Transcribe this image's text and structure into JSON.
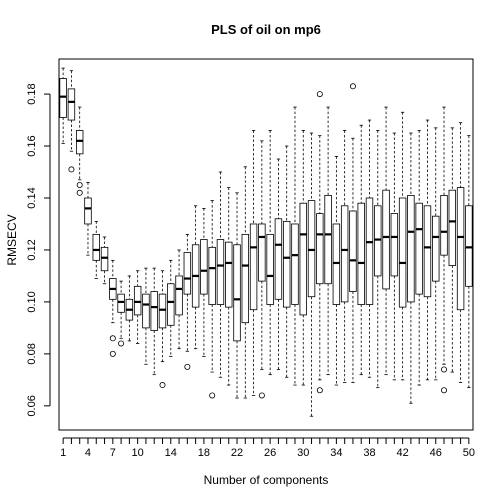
{
  "chart_data": {
    "type": "boxplot",
    "title": "PLS of oil on mp6",
    "xlabel": "Number of components",
    "ylabel": "RMSECV",
    "ylim": [
      0.05,
      0.195
    ],
    "y_ticks": [
      0.06,
      0.08,
      0.1,
      0.12,
      0.14,
      0.16,
      0.18
    ],
    "y_tick_labels": [
      "0.06",
      "0.08",
      "0.10",
      "0.12",
      "0.14",
      "0.16",
      "0.18"
    ],
    "x_tick_labels": [
      "1",
      "4",
      "7",
      "10",
      "14",
      "18",
      "22",
      "26",
      "30",
      "34",
      "38",
      "42",
      "46",
      "50"
    ],
    "x_tick_positions": [
      1,
      4,
      7,
      10,
      14,
      18,
      22,
      26,
      30,
      34,
      38,
      42,
      46,
      50
    ],
    "grid": false,
    "legend": "none",
    "boxes": [
      {
        "x": 1,
        "min": 0.161,
        "q1": 0.171,
        "median": 0.179,
        "q3": 0.186,
        "max": 0.19,
        "outliers": []
      },
      {
        "x": 2,
        "min": 0.158,
        "q1": 0.17,
        "median": 0.177,
        "q3": 0.182,
        "max": 0.189,
        "outliers": [
          0.151
        ]
      },
      {
        "x": 3,
        "min": 0.147,
        "q1": 0.157,
        "median": 0.162,
        "q3": 0.166,
        "max": 0.175,
        "outliers": [
          0.145,
          0.142
        ]
      },
      {
        "x": 4,
        "min": 0.118,
        "q1": 0.13,
        "median": 0.136,
        "q3": 0.14,
        "max": 0.146,
        "outliers": []
      },
      {
        "x": 5,
        "min": 0.109,
        "q1": 0.116,
        "median": 0.12,
        "q3": 0.126,
        "max": 0.131,
        "outliers": []
      },
      {
        "x": 6,
        "min": 0.107,
        "q1": 0.112,
        "median": 0.117,
        "q3": 0.121,
        "max": 0.125,
        "outliers": []
      },
      {
        "x": 7,
        "min": 0.092,
        "q1": 0.101,
        "median": 0.105,
        "q3": 0.109,
        "max": 0.116,
        "outliers": [
          0.086,
          0.08
        ]
      },
      {
        "x": 8,
        "min": 0.086,
        "q1": 0.096,
        "median": 0.1,
        "q3": 0.103,
        "max": 0.108,
        "outliers": [
          0.084
        ]
      },
      {
        "x": 9,
        "min": 0.085,
        "q1": 0.093,
        "median": 0.097,
        "q3": 0.101,
        "max": 0.11,
        "outliers": []
      },
      {
        "x": 10,
        "min": 0.084,
        "q1": 0.095,
        "median": 0.1,
        "q3": 0.106,
        "max": 0.112,
        "outliers": []
      },
      {
        "x": 11,
        "min": 0.076,
        "q1": 0.09,
        "median": 0.099,
        "q3": 0.103,
        "max": 0.113,
        "outliers": []
      },
      {
        "x": 12,
        "min": 0.072,
        "q1": 0.089,
        "median": 0.098,
        "q3": 0.104,
        "max": 0.113,
        "outliers": []
      },
      {
        "x": 13,
        "min": 0.077,
        "q1": 0.09,
        "median": 0.097,
        "q3": 0.103,
        "max": 0.112,
        "outliers": [
          0.068
        ]
      },
      {
        "x": 14,
        "min": 0.079,
        "q1": 0.091,
        "median": 0.1,
        "q3": 0.107,
        "max": 0.116,
        "outliers": []
      },
      {
        "x": 15,
        "min": 0.082,
        "q1": 0.095,
        "median": 0.105,
        "q3": 0.11,
        "max": 0.12,
        "outliers": []
      },
      {
        "x": 16,
        "min": 0.081,
        "q1": 0.103,
        "median": 0.109,
        "q3": 0.119,
        "max": 0.126,
        "outliers": [
          0.075
        ]
      },
      {
        "x": 17,
        "min": 0.082,
        "q1": 0.098,
        "median": 0.11,
        "q3": 0.122,
        "max": 0.137,
        "outliers": []
      },
      {
        "x": 18,
        "min": 0.079,
        "q1": 0.103,
        "median": 0.112,
        "q3": 0.124,
        "max": 0.136,
        "outliers": []
      },
      {
        "x": 19,
        "min": 0.073,
        "q1": 0.099,
        "median": 0.113,
        "q3": 0.121,
        "max": 0.139,
        "outliers": [
          0.064
        ]
      },
      {
        "x": 20,
        "min": 0.071,
        "q1": 0.099,
        "median": 0.114,
        "q3": 0.124,
        "max": 0.15,
        "outliers": []
      },
      {
        "x": 21,
        "min": 0.068,
        "q1": 0.098,
        "median": 0.115,
        "q3": 0.123,
        "max": 0.144,
        "outliers": []
      },
      {
        "x": 22,
        "min": 0.063,
        "q1": 0.085,
        "median": 0.101,
        "q3": 0.122,
        "max": 0.142,
        "outliers": []
      },
      {
        "x": 23,
        "min": 0.063,
        "q1": 0.092,
        "median": 0.114,
        "q3": 0.126,
        "max": 0.152,
        "outliers": []
      },
      {
        "x": 24,
        "min": 0.064,
        "q1": 0.097,
        "median": 0.121,
        "q3": 0.13,
        "max": 0.166,
        "outliers": []
      },
      {
        "x": 25,
        "min": 0.074,
        "q1": 0.108,
        "median": 0.125,
        "q3": 0.13,
        "max": 0.162,
        "outliers": [
          0.064
        ]
      },
      {
        "x": 26,
        "min": 0.072,
        "q1": 0.099,
        "median": 0.11,
        "q3": 0.126,
        "max": 0.166,
        "outliers": []
      },
      {
        "x": 27,
        "min": 0.074,
        "q1": 0.101,
        "median": 0.122,
        "q3": 0.132,
        "max": 0.155,
        "outliers": []
      },
      {
        "x": 28,
        "min": 0.071,
        "q1": 0.098,
        "median": 0.117,
        "q3": 0.131,
        "max": 0.16,
        "outliers": []
      },
      {
        "x": 29,
        "min": 0.068,
        "q1": 0.099,
        "median": 0.118,
        "q3": 0.13,
        "max": 0.175,
        "outliers": []
      },
      {
        "x": 30,
        "min": 0.068,
        "q1": 0.095,
        "median": 0.126,
        "q3": 0.138,
        "max": 0.166,
        "outliers": []
      },
      {
        "x": 31,
        "min": 0.056,
        "q1": 0.102,
        "median": 0.12,
        "q3": 0.139,
        "max": 0.165,
        "outliers": []
      },
      {
        "x": 32,
        "min": 0.07,
        "q1": 0.107,
        "median": 0.126,
        "q3": 0.134,
        "max": 0.164,
        "outliers": [
          0.18,
          0.066
        ]
      },
      {
        "x": 33,
        "min": 0.072,
        "q1": 0.107,
        "median": 0.126,
        "q3": 0.141,
        "max": 0.175,
        "outliers": []
      },
      {
        "x": 34,
        "min": 0.068,
        "q1": 0.099,
        "median": 0.115,
        "q3": 0.13,
        "max": 0.156,
        "outliers": []
      },
      {
        "x": 35,
        "min": 0.069,
        "q1": 0.1,
        "median": 0.12,
        "q3": 0.137,
        "max": 0.166,
        "outliers": []
      },
      {
        "x": 36,
        "min": 0.069,
        "q1": 0.104,
        "median": 0.116,
        "q3": 0.135,
        "max": 0.163,
        "outliers": [
          0.183
        ]
      },
      {
        "x": 37,
        "min": 0.072,
        "q1": 0.099,
        "median": 0.115,
        "q3": 0.138,
        "max": 0.168,
        "outliers": []
      },
      {
        "x": 38,
        "min": 0.071,
        "q1": 0.099,
        "median": 0.123,
        "q3": 0.14,
        "max": 0.17,
        "outliers": []
      },
      {
        "x": 39,
        "min": 0.067,
        "q1": 0.11,
        "median": 0.124,
        "q3": 0.137,
        "max": 0.166,
        "outliers": []
      },
      {
        "x": 40,
        "min": 0.072,
        "q1": 0.105,
        "median": 0.125,
        "q3": 0.143,
        "max": 0.175,
        "outliers": []
      },
      {
        "x": 41,
        "min": 0.07,
        "q1": 0.11,
        "median": 0.125,
        "q3": 0.134,
        "max": 0.165,
        "outliers": []
      },
      {
        "x": 42,
        "min": 0.07,
        "q1": 0.098,
        "median": 0.115,
        "q3": 0.14,
        "max": 0.173,
        "outliers": []
      },
      {
        "x": 43,
        "min": 0.061,
        "q1": 0.1,
        "median": 0.127,
        "q3": 0.141,
        "max": 0.165,
        "outliers": []
      },
      {
        "x": 44,
        "min": 0.068,
        "q1": 0.103,
        "median": 0.128,
        "q3": 0.138,
        "max": 0.166,
        "outliers": []
      },
      {
        "x": 45,
        "min": 0.07,
        "q1": 0.102,
        "median": 0.121,
        "q3": 0.137,
        "max": 0.17,
        "outliers": []
      },
      {
        "x": 46,
        "min": 0.07,
        "q1": 0.108,
        "median": 0.125,
        "q3": 0.133,
        "max": 0.167,
        "outliers": []
      },
      {
        "x": 47,
        "min": 0.076,
        "q1": 0.118,
        "median": 0.127,
        "q3": 0.141,
        "max": 0.175,
        "outliers": [
          0.074,
          0.066
        ]
      },
      {
        "x": 48,
        "min": 0.073,
        "q1": 0.114,
        "median": 0.131,
        "q3": 0.143,
        "max": 0.167,
        "outliers": []
      },
      {
        "x": 49,
        "min": 0.069,
        "q1": 0.097,
        "median": 0.125,
        "q3": 0.144,
        "max": 0.169,
        "outliers": []
      },
      {
        "x": 50,
        "min": 0.067,
        "q1": 0.106,
        "median": 0.121,
        "q3": 0.137,
        "max": 0.164,
        "outliers": []
      }
    ]
  }
}
